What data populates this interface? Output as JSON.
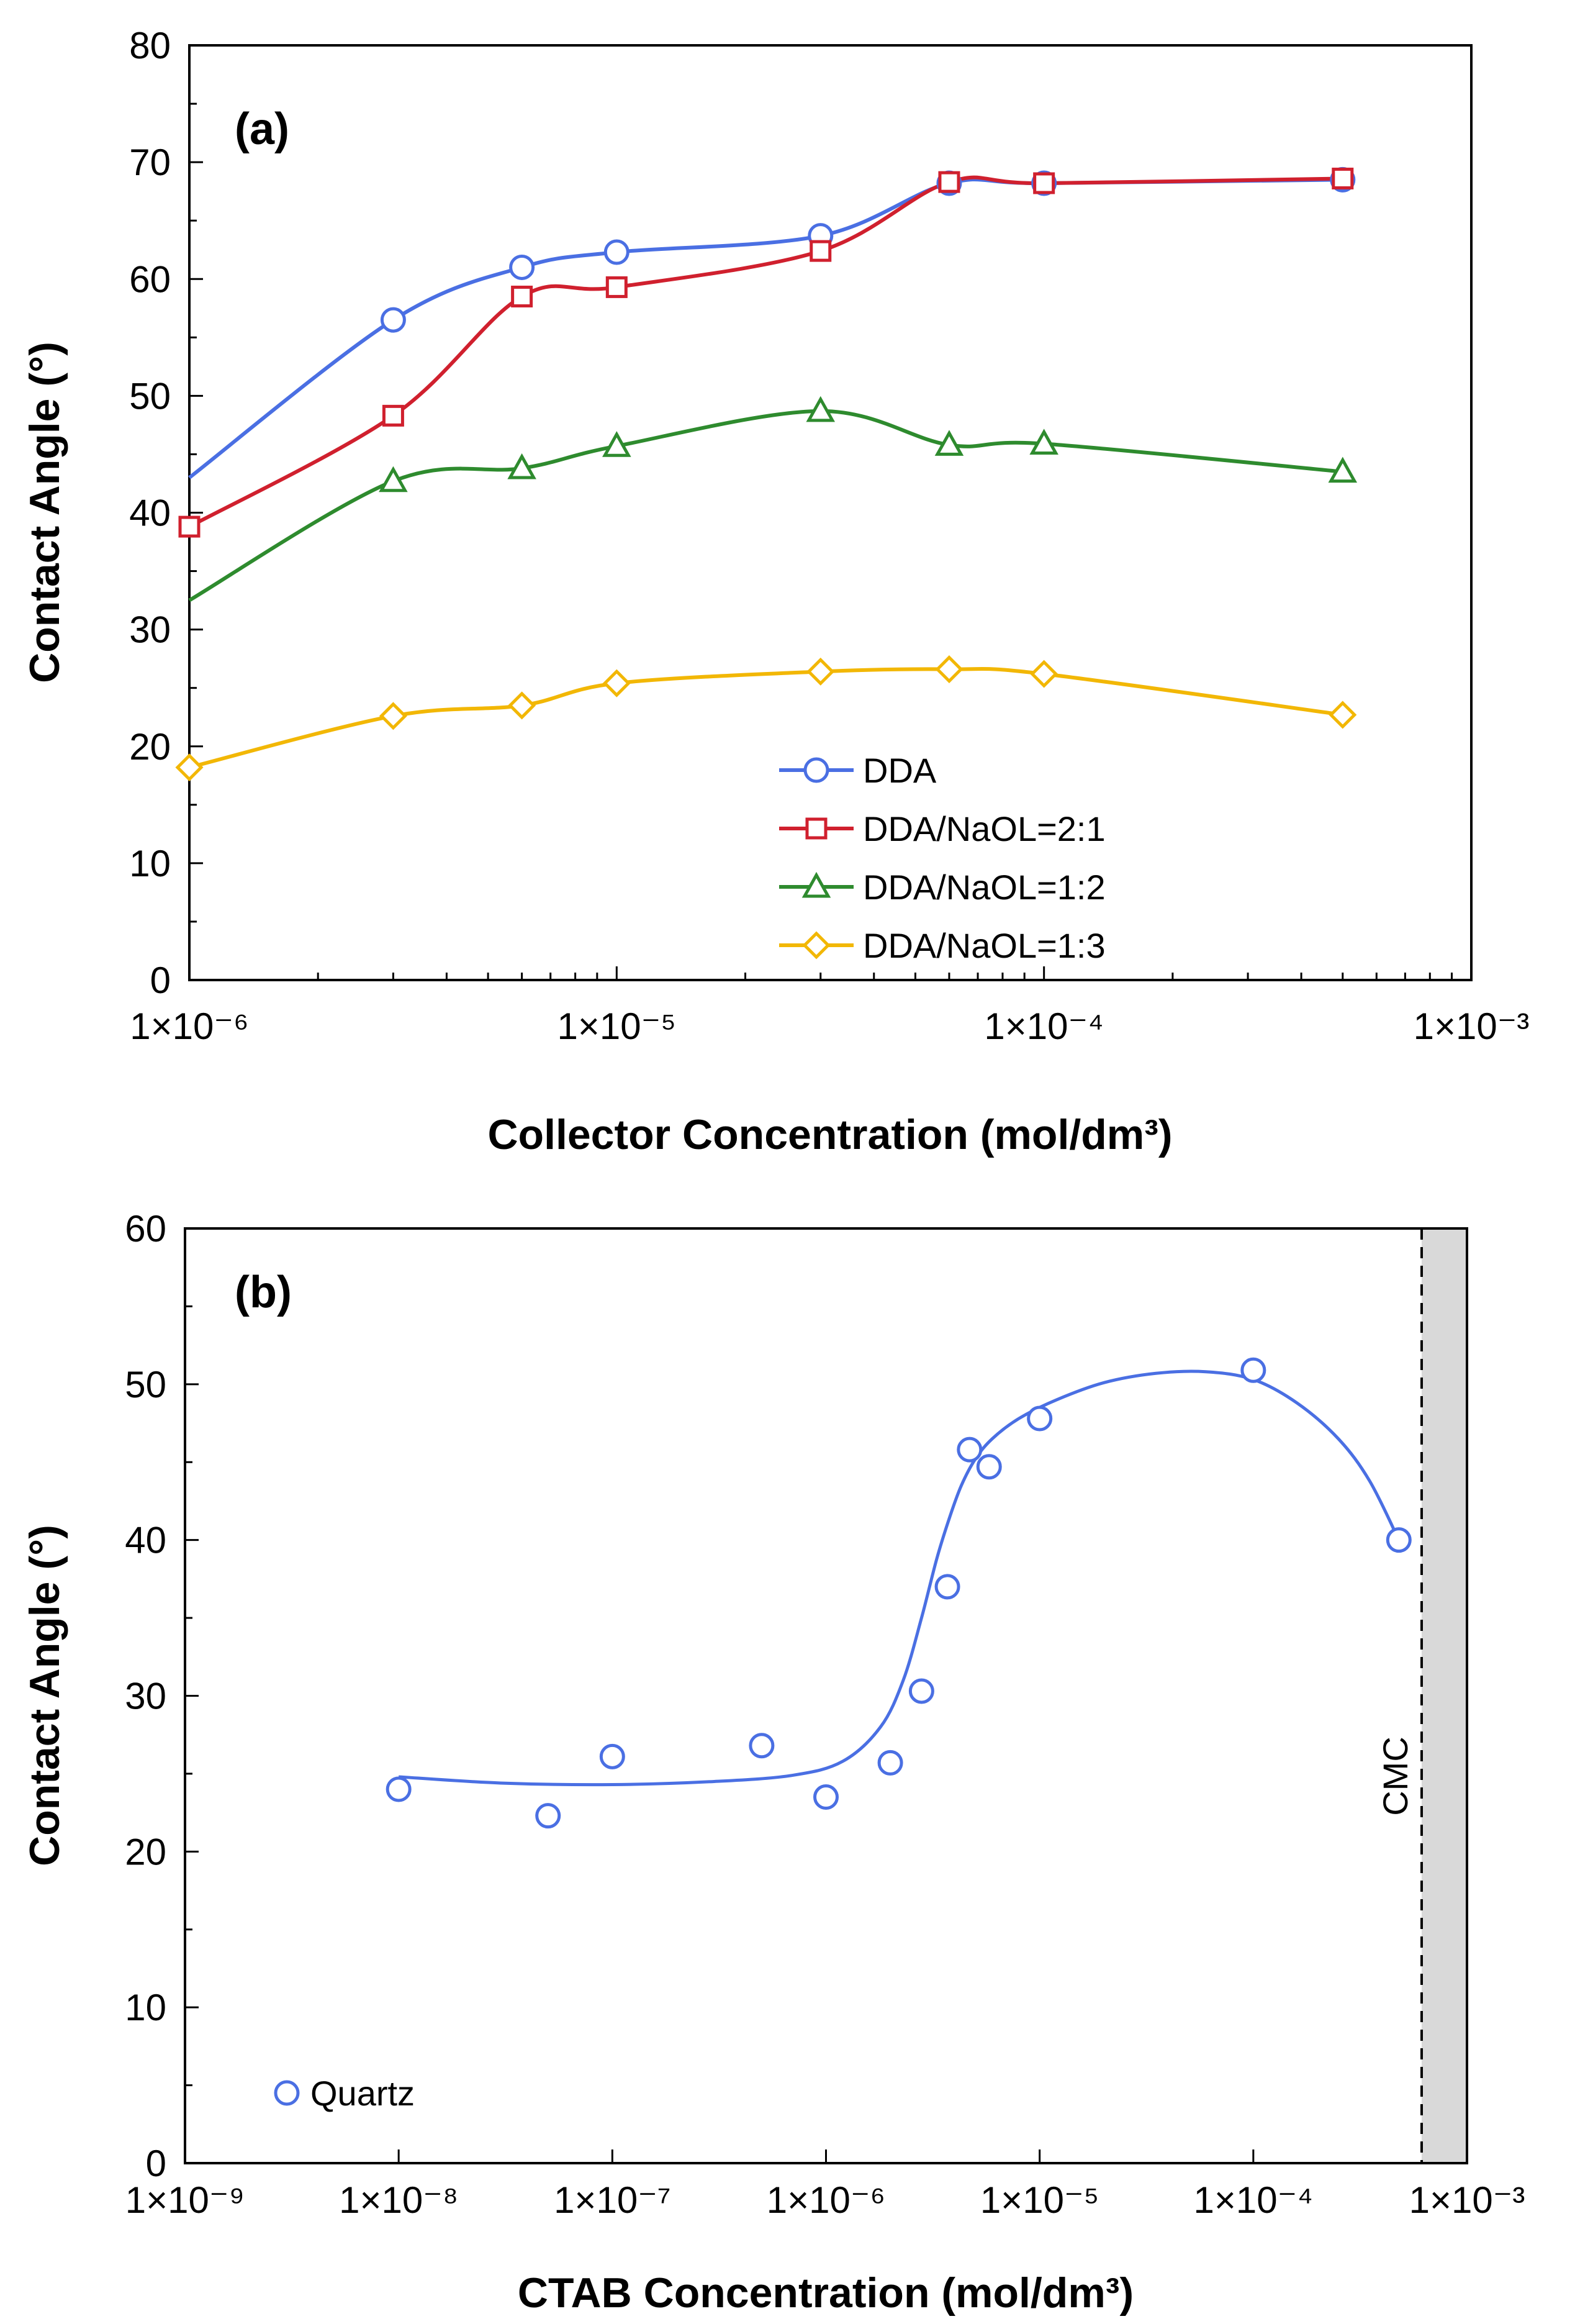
{
  "colors": {
    "blue": "#4A6FE3",
    "red": "#D0202E",
    "green": "#2E8B2E",
    "yellow": "#F2B705",
    "cmc_shade": "#D9D9D9"
  },
  "chart_data": [
    {
      "type": "line",
      "panel_label": "(a)",
      "xlabel": "Collector Concentration (mol/dm³)",
      "ylabel": "Contact Angle (°)",
      "xscale": "log",
      "xlim": [
        1e-06,
        0.001
      ],
      "ylim": [
        0,
        80
      ],
      "xticks": [
        "1×10⁻⁶",
        "1×10⁻⁵",
        "1×10⁻⁴",
        "1×10⁻³"
      ],
      "yticks": [
        "0",
        "10",
        "20",
        "30",
        "40",
        "50",
        "60",
        "70",
        "80"
      ],
      "legend_position": "bottom-center",
      "series": [
        {
          "name": "DDA",
          "color": "blue",
          "marker": "circle",
          "x": [
            1e-06,
            3e-06,
            6e-06,
            1e-05,
            3e-05,
            6e-05,
            0.0001,
            0.0005
          ],
          "y": [
            43,
            56.5,
            61,
            62.3,
            63.7,
            68.2,
            68.2,
            68.5
          ]
        },
        {
          "name": "DDA/NaOL=2:1",
          "color": "red",
          "marker": "square",
          "x": [
            1e-06,
            3e-06,
            6e-06,
            1e-05,
            3e-05,
            6e-05,
            0.0001,
            0.0005
          ],
          "y": [
            38.8,
            48.3,
            58.5,
            59.3,
            62.4,
            68.3,
            68.2,
            68.6
          ]
        },
        {
          "name": "DDA/NaOL=1:2",
          "color": "green",
          "marker": "triangle",
          "x": [
            1e-06,
            3e-06,
            6e-06,
            1e-05,
            3e-05,
            6e-05,
            0.0001,
            0.0005
          ],
          "y": [
            32.5,
            42.7,
            43.8,
            45.7,
            48.7,
            45.8,
            45.9,
            43.5
          ]
        },
        {
          "name": "DDA/NaOL=1:3",
          "color": "yellow",
          "marker": "diamond",
          "x": [
            1e-06,
            3e-06,
            6e-06,
            1e-05,
            3e-05,
            6e-05,
            0.0001,
            0.0005
          ],
          "y": [
            18.2,
            22.6,
            23.5,
            25.4,
            26.4,
            26.6,
            26.2,
            22.7
          ]
        }
      ]
    },
    {
      "type": "scatter",
      "panel_label": "(b)",
      "xlabel": "CTAB Concentration (mol/dm³)",
      "ylabel": "Contact Angle (°)",
      "xscale": "log",
      "xlim": [
        1e-09,
        0.001
      ],
      "ylim": [
        0,
        60
      ],
      "xticks": [
        "1×10⁻⁹",
        "1×10⁻⁸",
        "1×10⁻⁷",
        "1×10⁻⁶",
        "1×10⁻⁵",
        "1×10⁻⁴",
        "1×10⁻³"
      ],
      "yticks": [
        "0",
        "10",
        "20",
        "30",
        "40",
        "50",
        "60"
      ],
      "legend_position": "bottom-left",
      "annotation": "CMC",
      "cmc_x": 0.0006,
      "series": [
        {
          "name": "Quartz",
          "color": "blue",
          "marker": "circle",
          "x": [
            1e-08,
            5e-08,
            1e-07,
            5e-07,
            1e-06,
            2e-06,
            2.8e-06,
            3.7e-06,
            4.7e-06,
            5.8e-06,
            1e-05,
            0.0001,
            0.00048
          ],
          "y": [
            24,
            22.3,
            26.1,
            26.8,
            23.5,
            25.7,
            30.3,
            37,
            45.8,
            44.7,
            47.8,
            50.9,
            40
          ],
          "fit_x": [
            1e-08,
            3e-08,
            1e-07,
            3e-07,
            7e-07,
            1.2e-06,
            1.8e-06,
            2.3e-06,
            2.8e-06,
            3.3e-06,
            3.8e-06,
            4.3e-06,
            5e-06,
            6e-06,
            8e-06,
            1.2e-05,
            2e-05,
            3.5e-05,
            6e-05,
            0.0001,
            0.00016,
            0.00025,
            0.00035,
            0.00048
          ],
          "fit_y": [
            24.8,
            24.4,
            24.3,
            24.5,
            24.9,
            25.8,
            28,
            31,
            35,
            38.8,
            41.5,
            43.5,
            45.2,
            46.5,
            47.8,
            49,
            50.1,
            50.7,
            50.8,
            50.3,
            48.8,
            46.5,
            43.8,
            40
          ]
        }
      ]
    }
  ]
}
